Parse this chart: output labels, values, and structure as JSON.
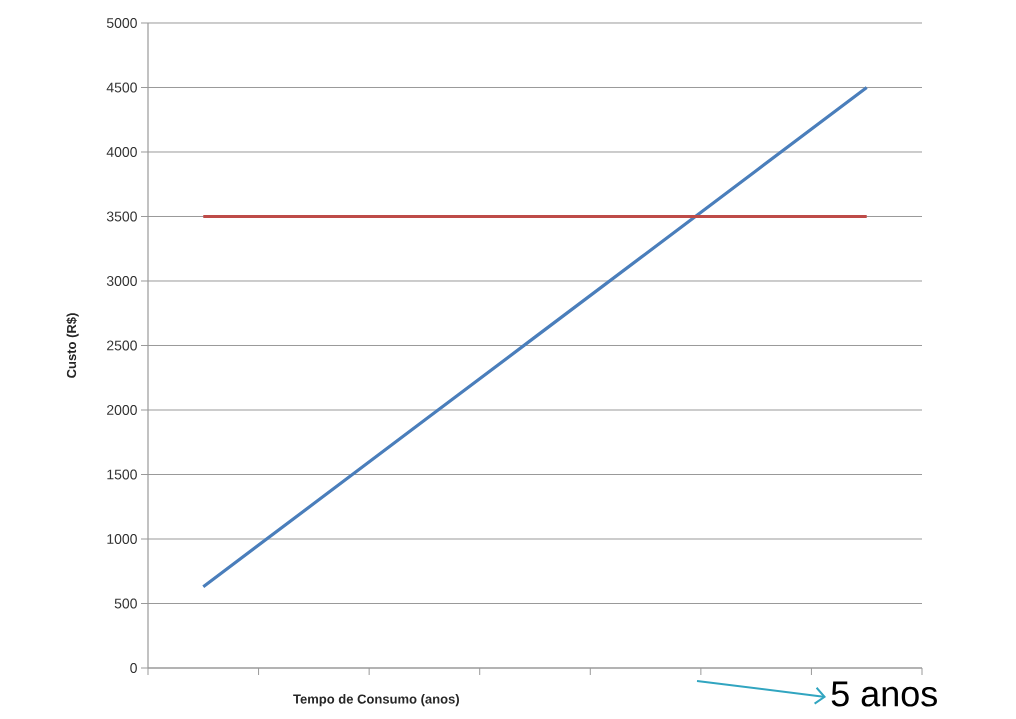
{
  "chart_data": {
    "type": "line",
    "xlabel": "Tempo de Consumo (anos)",
    "ylabel": "Custo (R$)",
    "categories": [
      null,
      null,
      null,
      null,
      null,
      null,
      null
    ],
    "series": [
      {
        "color": "#4a7ebb",
        "values": [
          630,
          1275,
          1920,
          2565,
          3210,
          3855,
          4500
        ]
      },
      {
        "color": "#be4b48",
        "values": [
          3500,
          3500,
          3500,
          3500,
          3500,
          3500,
          3500
        ]
      }
    ],
    "ylim": [
      0,
      5000
    ],
    "yticks": [
      0,
      500,
      1000,
      1500,
      2000,
      2500,
      3000,
      3500,
      4000,
      4500,
      5000
    ],
    "grid": "y",
    "annotations": [
      "5 anos"
    ]
  }
}
